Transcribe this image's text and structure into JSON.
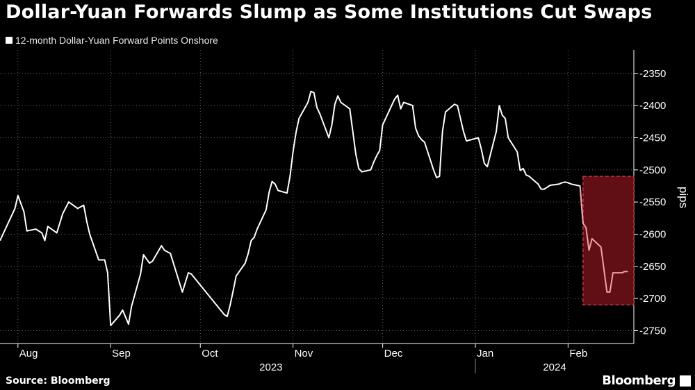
{
  "title": "Dollar-Yuan Forwards Slump as Some Institutions Cut Swaps",
  "source": "Source: Bloomberg",
  "logo": "Bloomberg",
  "colors": {
    "background": "#000000",
    "line": "#ffffff",
    "grid": "#666666",
    "highlight_fill": "#6b0f16",
    "highlight_stroke": "#e0464f",
    "highlight_line": "#f2a0a6"
  },
  "chart_data": {
    "type": "line",
    "title": "Dollar-Yuan Forwards Slump as Some Institutions Cut Swaps",
    "legend": [
      "12-month Dollar-Yuan Forward Points Onshore"
    ],
    "legend_position": "top-left",
    "xlabel": "",
    "ylabel": "pips",
    "ylim": [
      -2770,
      -2320
    ],
    "yticks": [
      -2350,
      -2400,
      -2450,
      -2500,
      -2550,
      -2600,
      -2650,
      -2700,
      -2750
    ],
    "ytick_labels": [
      "-2350",
      "-2400",
      "-2450",
      "-2500",
      "-2550",
      "-2600",
      "-2650",
      "-2700",
      "-2750"
    ],
    "grid": true,
    "y_axis_side": "right",
    "xlim": [
      "2023-07-26",
      "2024-02-23"
    ],
    "month_ticks": [
      {
        "date": "2023-08-01",
        "label": "Aug"
      },
      {
        "date": "2023-09-01",
        "label": "Sep"
      },
      {
        "date": "2023-10-01",
        "label": "Oct"
      },
      {
        "date": "2023-11-01",
        "label": "Nov"
      },
      {
        "date": "2023-12-01",
        "label": "Dec"
      },
      {
        "date": "2024-01-01",
        "label": "Jan"
      },
      {
        "date": "2024-02-01",
        "label": "Feb"
      }
    ],
    "years": [
      {
        "label": "2023",
        "from": "2023-07-26",
        "to": "2023-12-31"
      },
      {
        "label": "2024",
        "from": "2024-01-01",
        "to": "2024-02-23"
      }
    ],
    "highlight": {
      "x": [
        "2024-02-06",
        "2024-02-23"
      ],
      "y": [
        -2710,
        -2510
      ]
    },
    "series": [
      {
        "name": "12-month Dollar-Yuan Forward Points Onshore",
        "x": [
          "2023-07-26",
          "2023-07-28",
          "2023-07-31",
          "2023-08-01",
          "2023-08-03",
          "2023-08-04",
          "2023-08-07",
          "2023-08-09",
          "2023-08-10",
          "2023-08-11",
          "2023-08-14",
          "2023-08-16",
          "2023-08-18",
          "2023-08-21",
          "2023-08-23",
          "2023-08-24",
          "2023-08-25",
          "2023-08-28",
          "2023-08-30",
          "2023-08-31",
          "2023-09-01",
          "2023-09-04",
          "2023-09-05",
          "2023-09-07",
          "2023-09-08",
          "2023-09-11",
          "2023-09-12",
          "2023-09-14",
          "2023-09-15",
          "2023-09-18",
          "2023-09-19",
          "2023-09-21",
          "2023-09-22",
          "2023-09-25",
          "2023-09-27",
          "2023-09-28",
          "2023-10-09",
          "2023-10-10",
          "2023-10-11",
          "2023-10-12",
          "2023-10-13",
          "2023-10-16",
          "2023-10-17",
          "2023-10-18",
          "2023-10-19",
          "2023-10-20",
          "2023-10-23",
          "2023-10-24",
          "2023-10-25",
          "2023-10-26",
          "2023-10-27",
          "2023-10-30",
          "2023-10-31",
          "2023-11-01",
          "2023-11-02",
          "2023-11-03",
          "2023-11-06",
          "2023-11-07",
          "2023-11-08",
          "2023-11-09",
          "2023-11-10",
          "2023-11-13",
          "2023-11-14",
          "2023-11-15",
          "2023-11-16",
          "2023-11-17",
          "2023-11-20",
          "2023-11-21",
          "2023-11-22",
          "2023-11-23",
          "2023-11-24",
          "2023-11-27",
          "2023-11-28",
          "2023-11-29",
          "2023-11-30",
          "2023-12-01",
          "2023-12-04",
          "2023-12-05",
          "2023-12-06",
          "2023-12-07",
          "2023-12-08",
          "2023-12-11",
          "2023-12-12",
          "2023-12-13",
          "2023-12-14",
          "2023-12-15",
          "2023-12-18",
          "2023-12-19",
          "2023-12-20",
          "2023-12-21",
          "2023-12-22",
          "2023-12-25",
          "2023-12-26",
          "2023-12-27",
          "2023-12-28",
          "2023-12-29",
          "2024-01-02",
          "2024-01-03",
          "2024-01-04",
          "2024-01-05",
          "2024-01-08",
          "2024-01-09",
          "2024-01-10",
          "2024-01-11",
          "2024-01-12",
          "2024-01-15",
          "2024-01-16",
          "2024-01-17",
          "2024-01-18",
          "2024-01-19",
          "2024-01-22",
          "2024-01-23",
          "2024-01-24",
          "2024-01-25",
          "2024-01-26",
          "2024-01-29",
          "2024-01-30",
          "2024-01-31",
          "2024-02-01",
          "2024-02-02",
          "2024-02-05",
          "2024-02-06",
          "2024-02-07",
          "2024-02-08",
          "2024-02-09",
          "2024-02-12",
          "2024-02-13",
          "2024-02-14",
          "2024-02-15",
          "2024-02-16",
          "2024-02-19",
          "2024-02-20",
          "2024-02-21"
        ],
        "values": [
          -2610,
          -2590,
          -2560,
          -2540,
          -2565,
          -2595,
          -2592,
          -2598,
          -2610,
          -2588,
          -2598,
          -2568,
          -2550,
          -2560,
          -2555,
          -2580,
          -2600,
          -2640,
          -2640,
          -2660,
          -2742,
          -2726,
          -2718,
          -2740,
          -2712,
          -2662,
          -2632,
          -2645,
          -2642,
          -2618,
          -2625,
          -2630,
          -2645,
          -2690,
          -2660,
          -2662,
          -2725,
          -2728,
          -2710,
          -2688,
          -2665,
          -2645,
          -2630,
          -2610,
          -2605,
          -2592,
          -2562,
          -2535,
          -2518,
          -2522,
          -2532,
          -2536,
          -2510,
          -2472,
          -2442,
          -2420,
          -2395,
          -2378,
          -2380,
          -2403,
          -2413,
          -2450,
          -2430,
          -2398,
          -2385,
          -2395,
          -2405,
          -2440,
          -2475,
          -2498,
          -2503,
          -2500,
          -2488,
          -2478,
          -2470,
          -2430,
          -2400,
          -2390,
          -2384,
          -2405,
          -2395,
          -2400,
          -2435,
          -2447,
          -2453,
          -2457,
          -2500,
          -2512,
          -2510,
          -2440,
          -2410,
          -2398,
          -2400,
          -2420,
          -2440,
          -2455,
          -2450,
          -2468,
          -2490,
          -2495,
          -2440,
          -2400,
          -2415,
          -2420,
          -2450,
          -2472,
          -2501,
          -2498,
          -2508,
          -2510,
          -2522,
          -2530,
          -2530,
          -2527,
          -2524,
          -2522,
          -2520,
          -2519,
          -2520,
          -2522,
          -2525,
          -2583,
          -2590,
          -2625,
          -2607,
          -2620,
          -2655,
          -2690,
          -2690,
          -2660,
          -2660,
          -2658,
          -2658
        ]
      }
    ]
  }
}
